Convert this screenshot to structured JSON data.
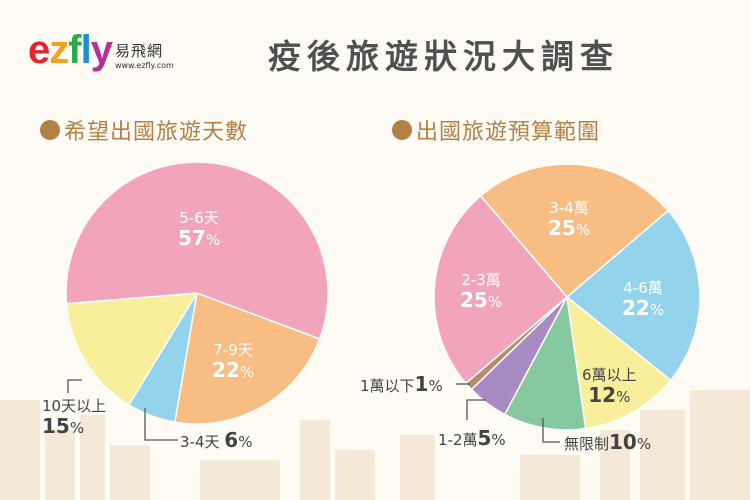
{
  "header": {
    "logo_text": "ezfly",
    "logo_cn": "易飛網",
    "logo_url": "www.ezfly.com",
    "title": "疫後旅遊狀況大調查"
  },
  "colors": {
    "background": "#fdfbf3",
    "heading": "#b38048",
    "title": "#505050"
  },
  "chart_data": [
    {
      "type": "pie",
      "title": "希望出國旅遊天數",
      "unit": "%",
      "slices": [
        {
          "label": "5-6天",
          "value": 57,
          "color": "#f1a4ba"
        },
        {
          "label": "7-9天",
          "value": 22,
          "color": "#f8bd83"
        },
        {
          "label": "3-4天",
          "value": 6,
          "color": "#94d3ec"
        },
        {
          "label": "10天以上",
          "value": 15,
          "color": "#f8ef9c"
        }
      ]
    },
    {
      "type": "pie",
      "title": "出國旅遊預算範圍",
      "unit": "%",
      "slices": [
        {
          "label": "3-4萬",
          "value": 25,
          "color": "#f8bd83"
        },
        {
          "label": "4-6萬",
          "value": 22,
          "color": "#94d3ec"
        },
        {
          "label": "6萬以上",
          "value": 12,
          "color": "#f8ef9c"
        },
        {
          "label": "無限制",
          "value": 10,
          "color": "#86c9a1"
        },
        {
          "label": "1-2萬",
          "value": 5,
          "color": "#a98bc4"
        },
        {
          "label": "1萬以下",
          "value": 1,
          "color": "#b88b6b"
        },
        {
          "label": "2-3萬",
          "value": 25,
          "color": "#f1a4ba"
        }
      ]
    }
  ]
}
